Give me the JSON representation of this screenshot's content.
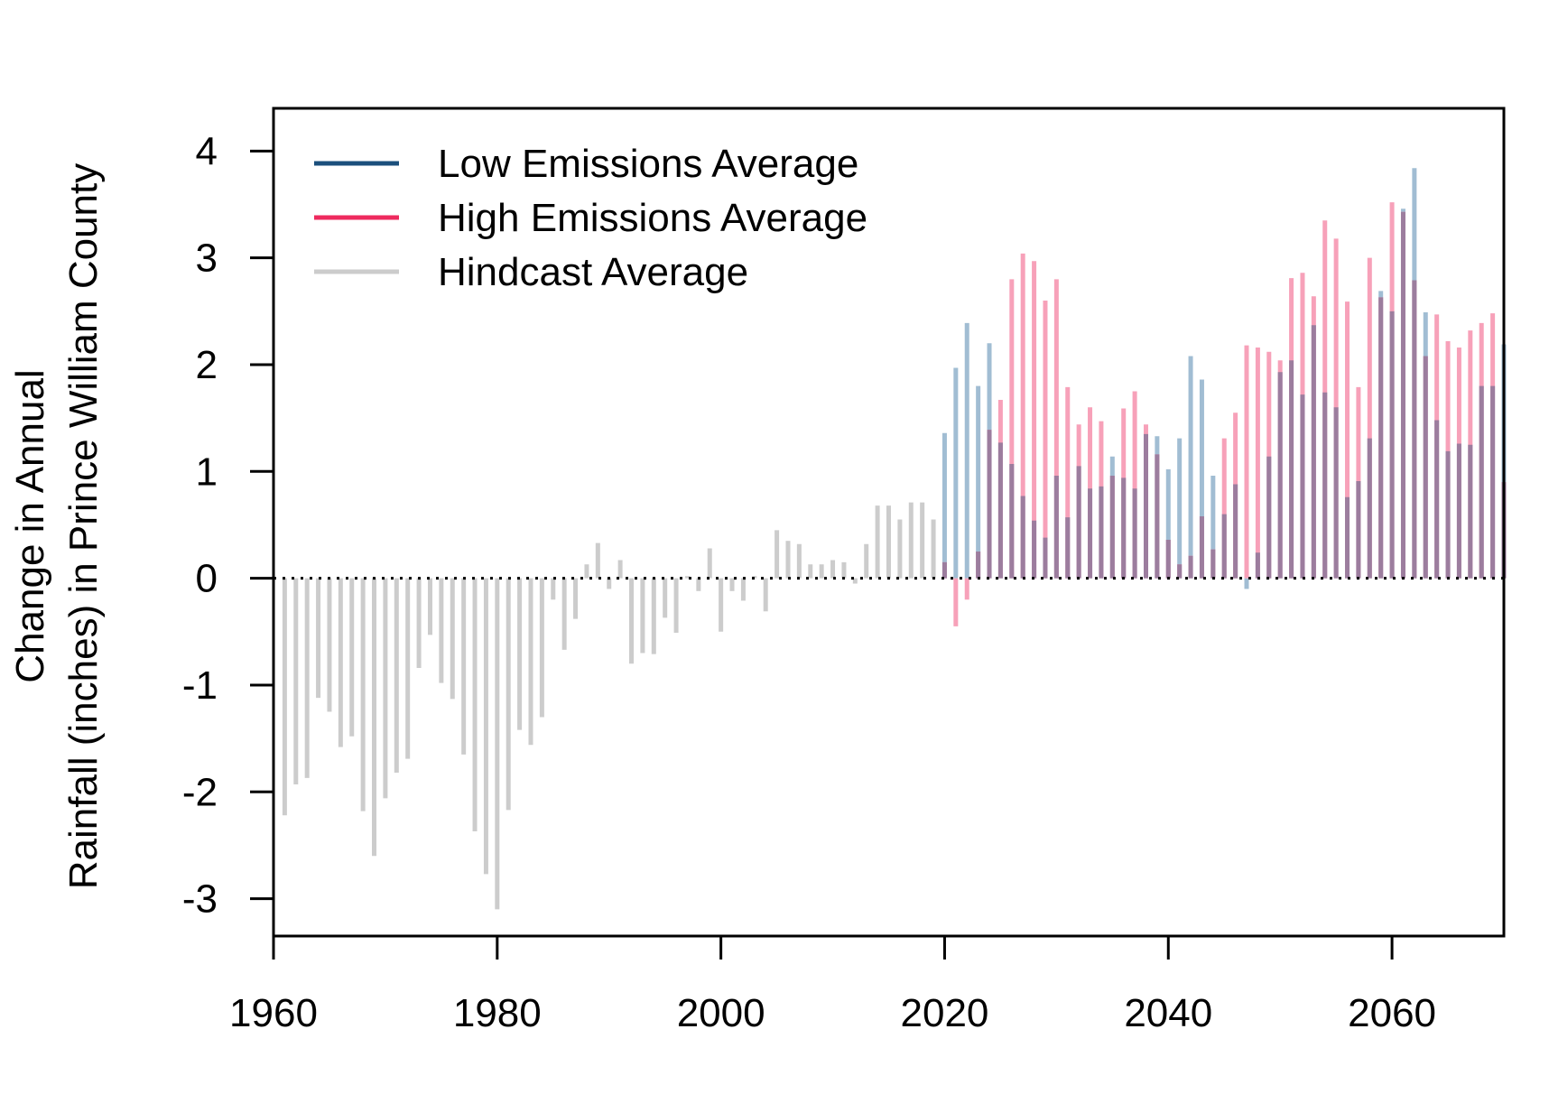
{
  "chart_data": {
    "type": "bar",
    "ylabel_line1": "Change in Annual",
    "ylabel_line2": "Rainfall (inches) in Prince William County",
    "xlim": [
      1960,
      2070
    ],
    "ylim": [
      -3.35,
      4.4
    ],
    "x_ticks": [
      1960,
      1980,
      2000,
      2020,
      2040,
      2060
    ],
    "y_ticks": [
      -3,
      -2,
      -1,
      0,
      1,
      2,
      3,
      4
    ],
    "zero_line": "dotted",
    "legend": {
      "placement": "top-left",
      "entries": [
        {
          "label": "Low Emissions Average",
          "color": "#1b4f7c"
        },
        {
          "label": "High Emissions Average",
          "color": "#ee2a5e"
        },
        {
          "label": "Hindcast Average",
          "color": "#cccccc"
        }
      ]
    },
    "series": [
      {
        "name": "Hindcast Average",
        "color": "#cccccc",
        "years": [
          1961,
          1962,
          1963,
          1964,
          1965,
          1966,
          1967,
          1968,
          1969,
          1970,
          1971,
          1972,
          1973,
          1974,
          1975,
          1976,
          1977,
          1978,
          1979,
          1980,
          1981,
          1982,
          1983,
          1984,
          1985,
          1986,
          1987,
          1988,
          1989,
          1990,
          1991,
          1992,
          1993,
          1994,
          1995,
          1996,
          1997,
          1998,
          1999,
          2000,
          2001,
          2002,
          2003,
          2004,
          2005,
          2006,
          2007,
          2008,
          2009,
          2010,
          2011,
          2012,
          2013,
          2014,
          2015,
          2016,
          2017,
          2018,
          2019
        ],
        "values": [
          -2.22,
          -1.93,
          -1.87,
          -1.12,
          -1.25,
          -1.58,
          -1.48,
          -2.18,
          -2.6,
          -2.06,
          -1.82,
          -1.69,
          -0.84,
          -0.53,
          -0.98,
          -1.13,
          -1.65,
          -2.37,
          -2.77,
          -3.1,
          -2.17,
          -1.42,
          -1.56,
          -1.3,
          -0.2,
          -0.67,
          -0.38,
          0.13,
          0.33,
          -0.1,
          0.17,
          -0.8,
          -0.7,
          -0.71,
          -0.37,
          -0.51,
          0.02,
          -0.12,
          0.28,
          -0.5,
          -0.12,
          -0.21,
          0.02,
          -0.31,
          0.45,
          0.35,
          0.32,
          0.13,
          0.13,
          0.17,
          0.15,
          -0.05,
          0.32,
          0.68,
          0.68,
          0.55,
          0.71,
          0.71,
          0.55
        ]
      },
      {
        "name": "Low Emissions Average",
        "color": "#1b4f7c",
        "years": [
          2020,
          2021,
          2022,
          2023,
          2024,
          2025,
          2026,
          2027,
          2028,
          2029,
          2030,
          2031,
          2032,
          2033,
          2034,
          2035,
          2036,
          2037,
          2038,
          2039,
          2040,
          2041,
          2042,
          2043,
          2044,
          2045,
          2046,
          2047,
          2048,
          2049,
          2050,
          2051,
          2052,
          2053,
          2054,
          2055,
          2056,
          2057,
          2058,
          2059,
          2060,
          2061,
          2062,
          2063,
          2064,
          2065,
          2066,
          2067,
          2068,
          2069,
          2070
        ],
        "values": [
          1.36,
          1.97,
          2.39,
          1.8,
          2.2,
          1.27,
          1.07,
          0.77,
          0.54,
          0.38,
          0.96,
          0.57,
          1.05,
          0.84,
          0.86,
          1.14,
          0.94,
          0.84,
          1.35,
          1.33,
          1.02,
          1.31,
          2.08,
          1.86,
          0.96,
          0.6,
          0.88,
          -0.1,
          0.24,
          1.14,
          1.93,
          2.04,
          1.72,
          2.37,
          1.74,
          1.6,
          0.76,
          0.91,
          1.31,
          2.69,
          2.5,
          3.46,
          3.84,
          2.49,
          1.48,
          1.19,
          1.26,
          1.25,
          1.8,
          1.8,
          2.19
        ]
      },
      {
        "name": "High Emissions Average",
        "color": "#ee2a5e",
        "years": [
          2020,
          2021,
          2022,
          2023,
          2024,
          2025,
          2026,
          2027,
          2028,
          2029,
          2030,
          2031,
          2032,
          2033,
          2034,
          2035,
          2036,
          2037,
          2038,
          2039,
          2040,
          2041,
          2042,
          2043,
          2044,
          2045,
          2046,
          2047,
          2048,
          2049,
          2050,
          2051,
          2052,
          2053,
          2054,
          2055,
          2056,
          2057,
          2058,
          2059,
          2060,
          2061,
          2062,
          2063,
          2064,
          2065,
          2066,
          2067,
          2068,
          2069,
          2070
        ],
        "values": [
          0.15,
          -0.45,
          -0.2,
          0.25,
          1.39,
          1.67,
          2.8,
          3.04,
          2.97,
          2.6,
          2.8,
          1.79,
          1.44,
          1.6,
          1.47,
          0.96,
          1.59,
          1.75,
          1.44,
          1.16,
          0.36,
          0.13,
          0.21,
          0.58,
          0.27,
          1.31,
          1.55,
          2.18,
          2.16,
          2.12,
          2.04,
          2.81,
          2.86,
          2.64,
          3.35,
          3.18,
          2.59,
          1.79,
          3.0,
          2.63,
          3.52,
          3.43,
          2.79,
          2.08,
          2.47,
          2.22,
          2.16,
          2.32,
          2.39,
          2.48,
          0.9
        ]
      }
    ]
  }
}
